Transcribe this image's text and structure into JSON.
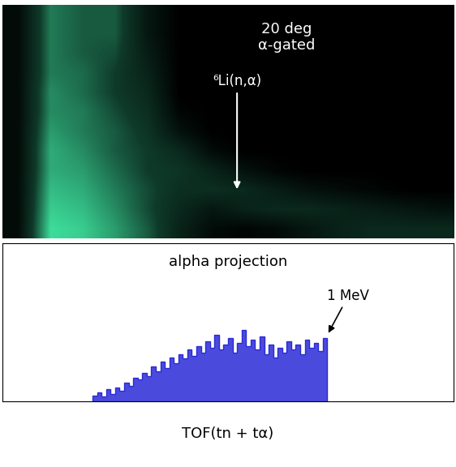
{
  "chart_data": [
    {
      "type": "heatmap",
      "annotations": [
        "20 deg\nα-gated",
        "⁶Li(n,α)"
      ],
      "tick_labels": false,
      "cells": [
        [
          0.1,
          0.7,
          0.6,
          0.6,
          0.2,
          0,
          0,
          0,
          0,
          0,
          0,
          0,
          0,
          0
        ],
        [
          0.1,
          0.7,
          0.6,
          0.6,
          0.2,
          0,
          0,
          0,
          0,
          0,
          0,
          0,
          0,
          0
        ],
        [
          0.1,
          0.7,
          0.6,
          0.55,
          0.25,
          0,
          0,
          0,
          0,
          0,
          0,
          0,
          0,
          0
        ],
        [
          0.1,
          0.7,
          0.65,
          0.5,
          0.3,
          0,
          0,
          0,
          0,
          0,
          0,
          0,
          0,
          0
        ],
        [
          0.1,
          0.75,
          0.65,
          0.5,
          0.35,
          0,
          0,
          0,
          0,
          0,
          0,
          0,
          0,
          0
        ],
        [
          0.1,
          0.75,
          0.7,
          0.55,
          0.4,
          0.05,
          0,
          0,
          0,
          0,
          0,
          0,
          0,
          0
        ],
        [
          0.1,
          0.8,
          0.7,
          0.6,
          0.45,
          0.15,
          0,
          0,
          0,
          0,
          0,
          0,
          0,
          0
        ],
        [
          0.1,
          0.85,
          0.75,
          0.6,
          0.5,
          0.35,
          0.1,
          0,
          0,
          0,
          0,
          0,
          0,
          0
        ],
        [
          0.1,
          0.85,
          0.8,
          0.65,
          0.5,
          0.45,
          0.3,
          0.15,
          0.05,
          0,
          0,
          0,
          0,
          0
        ],
        [
          0.1,
          0.9,
          0.85,
          0.7,
          0.55,
          0.4,
          0.4,
          0.35,
          0.25,
          0.15,
          0.1,
          0.05,
          0,
          0
        ],
        [
          0.1,
          0.95,
          0.9,
          0.75,
          0.55,
          0.35,
          0.2,
          0.3,
          0.35,
          0.35,
          0.3,
          0.25,
          0.2,
          0.15
        ],
        [
          0.1,
          1.0,
          0.95,
          0.8,
          0.6,
          0.3,
          0.1,
          0.05,
          0.1,
          0.2,
          0.3,
          0.35,
          0.35,
          0.35
        ]
      ]
    },
    {
      "type": "histogram",
      "title": "alpha projection",
      "xlabel": "TOF(tn + tα)",
      "annotations": [
        "1 MeV"
      ],
      "color": "#2a2ad6",
      "tick_labels": false,
      "xlim": [
        0,
        100
      ],
      "ylim": [
        0,
        100
      ],
      "bins": [
        20,
        21,
        22,
        23,
        24,
        25,
        26,
        27,
        28,
        29,
        30,
        31,
        32,
        33,
        34,
        35,
        36,
        37,
        38,
        39,
        40,
        41,
        42,
        43,
        44,
        45,
        46,
        47,
        48,
        49,
        50,
        51,
        52,
        53,
        54,
        55,
        56,
        57,
        58,
        59,
        60,
        61,
        62,
        63,
        64,
        65,
        66,
        67,
        68,
        69,
        70,
        71,
        72
      ],
      "counts": [
        4,
        6,
        3,
        8,
        5,
        9,
        7,
        12,
        10,
        15,
        14,
        18,
        16,
        22,
        19,
        25,
        21,
        28,
        24,
        30,
        27,
        33,
        29,
        35,
        31,
        38,
        34,
        42,
        33,
        36,
        40,
        31,
        37,
        45,
        35,
        39,
        33,
        41,
        30,
        36,
        28,
        34,
        31,
        38,
        33,
        36,
        30,
        39,
        34,
        37,
        32,
        40
      ]
    }
  ]
}
